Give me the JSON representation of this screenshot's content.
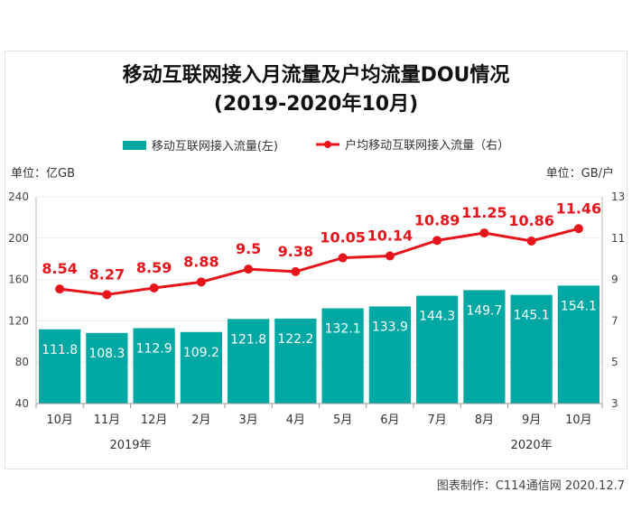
{
  "chart_data": {
    "type": "bar+line",
    "title": "移动互联网接入月流量及户均流量DOU情况",
    "subtitle": "(2019-2020年10月)",
    "categories": [
      "10月",
      "11月",
      "12月",
      "2月",
      "3月",
      "4月",
      "5月",
      "6月",
      "7月",
      "8月",
      "9月",
      "10月"
    ],
    "year_labels": [
      "2019年",
      "2020年"
    ],
    "series": [
      {
        "name": "移动互联网接入流量(左)",
        "type": "bar",
        "axis": "left",
        "color": "#00a8a4",
        "values": [
          111.8,
          108.3,
          112.9,
          109.2,
          121.8,
          122.2,
          132.1,
          133.9,
          144.3,
          149.7,
          145.1,
          154.1
        ]
      },
      {
        "name": "户均移动互联网接入流量（右）",
        "type": "line",
        "axis": "right",
        "color": "#e8141b",
        "values": [
          8.54,
          8.27,
          8.59,
          8.88,
          9.5,
          9.38,
          10.05,
          10.14,
          10.89,
          11.25,
          10.86,
          11.46
        ]
      }
    ],
    "left_axis": {
      "label": "单位：亿GB",
      "range": [
        40,
        240
      ],
      "ticks": [
        40,
        80,
        120,
        160,
        200,
        240
      ]
    },
    "right_axis": {
      "label": "单位：GB/户",
      "range": [
        3,
        13
      ],
      "ticks": [
        3,
        5,
        7,
        9,
        11,
        13
      ]
    },
    "legend": "top"
  },
  "credit": "图表制作：C114通信网  2020.12.7"
}
